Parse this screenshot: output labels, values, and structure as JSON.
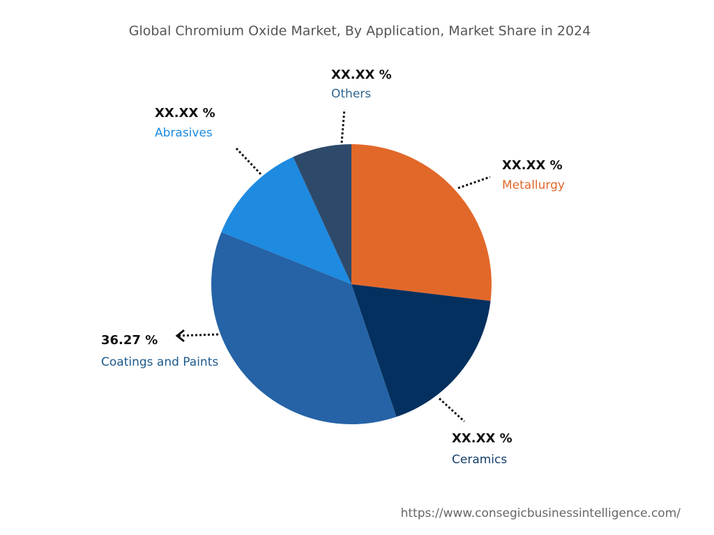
{
  "chart_data": {
    "type": "pie",
    "title": "Global Chromium Oxide Market, By Application, Market Share in 2024",
    "categories": [
      "Metallurgy",
      "Ceramics",
      "Coatings and Paints",
      "Abrasives",
      "Others"
    ],
    "values": [
      26.9,
      17.9,
      36.27,
      12.1,
      6.83
    ],
    "value_labels": [
      "XX.XX %",
      "XX.XX %",
      "36.27 %",
      "XX.XX %",
      "XX.XX %"
    ],
    "colors": [
      "#e2682a",
      "#03305f",
      "#2563a6",
      "#1e8ae0",
      "#2e4a6b"
    ],
    "source": "https://www.consegicbusinessintelligence.com/"
  }
}
